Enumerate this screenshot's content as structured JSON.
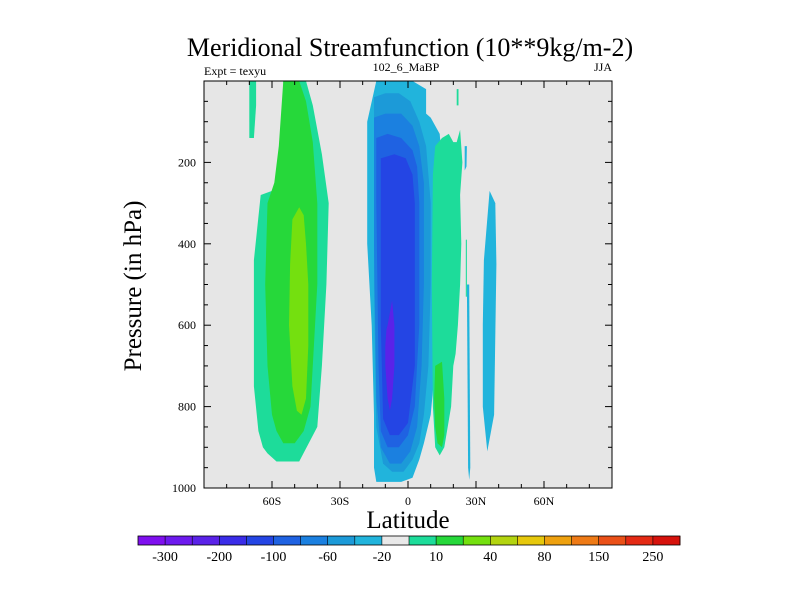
{
  "chart_data": {
    "type": "contour",
    "title": "Meridional Streamfunction (10**9kg/m-2)",
    "left_label": "Expt = texyu",
    "center_label": "102_6_MaBP",
    "right_label": "JJA",
    "xlabel": "Latitude",
    "ylabel": "Pressure (in hPa)",
    "xlim": [
      -90,
      90
    ],
    "ylim": [
      1000,
      0
    ],
    "xticks": [
      {
        "value": -60,
        "label": "60S"
      },
      {
        "value": -30,
        "label": "30S"
      },
      {
        "value": 0,
        "label": "0"
      },
      {
        "value": 30,
        "label": "30N"
      },
      {
        "value": 60,
        "label": "60N"
      }
    ],
    "yticks": [
      {
        "value": 200,
        "label": "200"
      },
      {
        "value": 400,
        "label": "400"
      },
      {
        "value": 600,
        "label": "600"
      },
      {
        "value": 800,
        "label": "800"
      },
      {
        "value": 1000,
        "label": "1000"
      }
    ],
    "background_color": "#e6e6e6",
    "colorbar": {
      "colors": [
        "#7f10ef",
        "#6d1aee",
        "#5a22e8",
        "#3a2ce8",
        "#2445e4",
        "#1f62e2",
        "#1b80e0",
        "#1c9ad8",
        "#21b4dc",
        "#e9e9e9",
        "#1ddc9a",
        "#26d83a",
        "#74e00f",
        "#b3d410",
        "#e6c80c",
        "#eea10f",
        "#ee7a16",
        "#ea5018",
        "#e42a14",
        "#d6120c"
      ],
      "labels": [
        "-300",
        "-200",
        "-100",
        "-60",
        "-20",
        "10",
        "40",
        "80",
        "150",
        "250"
      ]
    },
    "regions": [
      {
        "name": "nh-cyan-cell",
        "color": "#21b4dc",
        "lat": [
          33.5,
          36,
          38.5,
          39,
          38,
          35,
          33,
          33
        ],
        "p": [
          440,
          270,
          300,
          450,
          820,
          910,
          800,
          600
        ]
      },
      {
        "name": "hadley-outer",
        "color": "#21b4dc",
        "lat": [
          -14,
          -10,
          -5,
          2,
          8,
          8,
          10,
          14,
          15,
          15,
          13,
          12,
          10,
          7,
          5,
          2,
          -3,
          -8,
          -12,
          -14,
          -15,
          -15,
          -16,
          -18,
          -18
        ],
        "p": [
          0,
          0,
          0,
          0,
          20,
          80,
          90,
          130,
          200,
          300,
          500,
          700,
          820,
          890,
          930,
          975,
          985,
          985,
          985,
          985,
          950,
          820,
          600,
          400,
          100
        ]
      },
      {
        "name": "hadley-l2",
        "color": "#1c9ad8",
        "lat": [
          -15,
          -10,
          -4,
          1,
          5,
          8,
          10,
          10,
          9,
          7,
          5,
          2,
          -2,
          -7,
          -11,
          -14,
          -15
        ],
        "p": [
          40,
          30,
          30,
          50,
          100,
          160,
          300,
          500,
          700,
          820,
          890,
          930,
          960,
          960,
          940,
          850,
          500
        ]
      },
      {
        "name": "hadley-l3",
        "color": "#1b80e0",
        "lat": [
          -15,
          -10,
          -3,
          2,
          5,
          7,
          7,
          6,
          4,
          1,
          -3,
          -8,
          -12,
          -14,
          -15
        ],
        "p": [
          90,
          80,
          80,
          110,
          160,
          250,
          500,
          700,
          850,
          910,
          940,
          940,
          900,
          780,
          400
        ]
      },
      {
        "name": "hadley-l4",
        "color": "#1f62e2",
        "lat": [
          -14,
          -9,
          -3,
          2,
          4,
          5,
          5,
          3,
          0,
          -4,
          -9,
          -12,
          -13,
          -14
        ],
        "p": [
          140,
          130,
          140,
          170,
          210,
          300,
          600,
          800,
          870,
          900,
          900,
          860,
          700,
          300
        ]
      },
      {
        "name": "hadley-l5",
        "color": "#2445e4",
        "lat": [
          -12,
          -6,
          -1,
          2,
          3,
          3,
          0,
          -4,
          -8,
          -11,
          -12
        ],
        "p": [
          190,
          180,
          190,
          230,
          300,
          700,
          840,
          870,
          870,
          830,
          600
        ]
      },
      {
        "name": "hadley-core",
        "color": "#5a22e8",
        "lat": [
          -9,
          -7,
          -6,
          -6,
          -7,
          -8,
          -9,
          -10,
          -10,
          -9.5
        ],
        "p": [
          600,
          540,
          600,
          700,
          780,
          810,
          780,
          700,
          650,
          610
        ]
      },
      {
        "name": "sh-outer",
        "color": "#1ddc9a",
        "lat": [
          -68,
          -65,
          -55,
          -55,
          -52,
          -48,
          -45,
          -42,
          -38,
          -35,
          -36,
          -38,
          -40,
          -48,
          -58,
          -62,
          -64,
          -66,
          -68
        ],
        "p": [
          440,
          280,
          260,
          0,
          0,
          0,
          0,
          60,
          180,
          300,
          500,
          700,
          850,
          935,
          935,
          915,
          900,
          860,
          750
        ]
      },
      {
        "name": "sh-mid",
        "color": "#26d83a",
        "lat": [
          -57,
          -55,
          -51,
          -48,
          -45,
          -42,
          -40,
          -40,
          -43,
          -46,
          -50,
          -55,
          -58,
          -60,
          -62,
          -63,
          -62,
          -59
        ],
        "p": [
          160,
          0,
          0,
          0,
          50,
          150,
          300,
          500,
          800,
          860,
          890,
          890,
          860,
          820,
          700,
          500,
          300,
          250
        ]
      },
      {
        "name": "sh-inner",
        "color": "#74e00f",
        "lat": [
          -51,
          -48,
          -46,
          -45,
          -44,
          -44,
          -45,
          -47,
          -49,
          -51,
          -52.5,
          -52
        ],
        "p": [
          340,
          310,
          330,
          400,
          500,
          650,
          780,
          820,
          810,
          750,
          600,
          450
        ]
      },
      {
        "name": "far-sh-streak",
        "color": "#1ddc9a",
        "lat": [
          -70,
          -67,
          -67,
          -68,
          -70
        ],
        "p": [
          0,
          0,
          60,
          140,
          140
        ]
      },
      {
        "name": "nh-green-outer",
        "color": "#1ddc9a",
        "lat": [
          11,
          12,
          15,
          18,
          20,
          21.5,
          23,
          24,
          23,
          23.5,
          23,
          22,
          21,
          20,
          19,
          16,
          14,
          12,
          11,
          10.5
        ],
        "p": [
          230,
          160,
          140,
          130,
          150,
          150,
          120,
          200,
          280,
          400,
          500,
          600,
          670,
          700,
          800,
          900,
          920,
          900,
          800,
          500
        ]
      },
      {
        "name": "nh-green-inner",
        "color": "#26d83a",
        "lat": [
          12,
          15,
          16,
          16,
          15,
          13,
          12,
          11.5
        ],
        "p": [
          700,
          690,
          780,
          870,
          900,
          890,
          850,
          780
        ]
      },
      {
        "name": "nh-streak-a",
        "color": "#1ddc9a",
        "lat": [
          21.5,
          22.3,
          22.3,
          21.5
        ],
        "p": [
          20,
          20,
          60,
          60
        ]
      },
      {
        "name": "nh-streak-b",
        "color": "#1ddc9a",
        "lat": [
          25.5,
          26,
          26,
          25.5
        ],
        "p": [
          390,
          390,
          530,
          530
        ]
      },
      {
        "name": "nh-streak-c",
        "color": "#21b4dc",
        "lat": [
          26,
          27,
          27.5,
          27,
          26.5
        ],
        "p": [
          500,
          500,
          950,
          980,
          950
        ]
      },
      {
        "name": "nh-streak-d",
        "color": "#21b4dc",
        "lat": [
          25,
          26,
          25.8,
          25
        ],
        "p": [
          160,
          160,
          210,
          220
        ]
      }
    ]
  }
}
